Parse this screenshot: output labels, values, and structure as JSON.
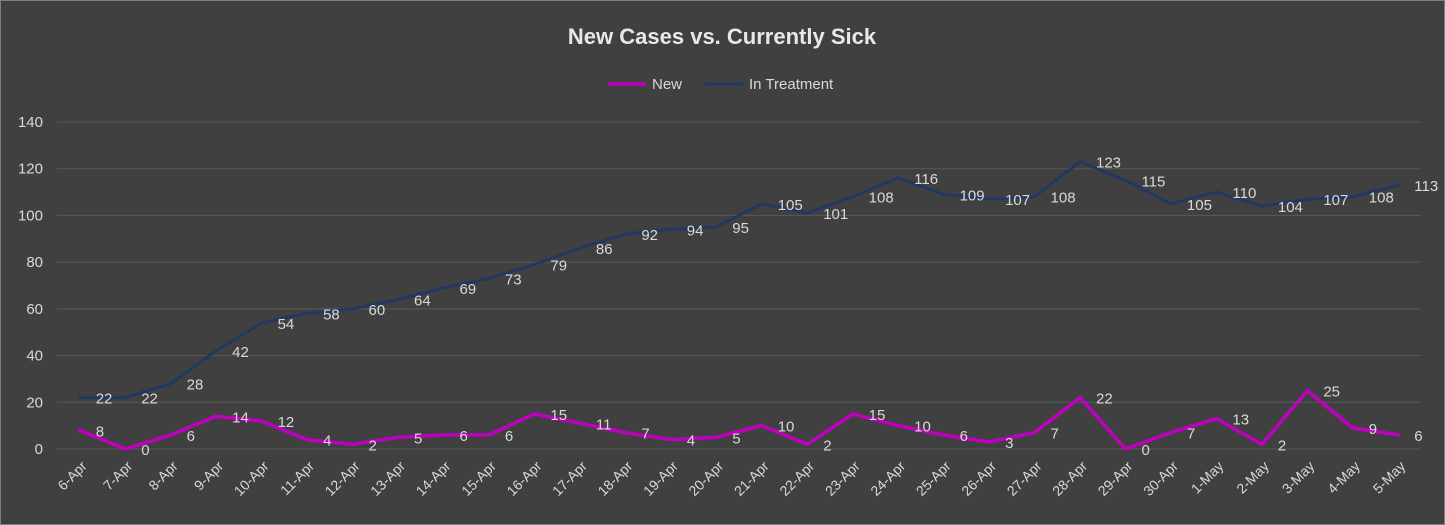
{
  "chart_data": {
    "type": "line",
    "title": "New Cases vs. Currently Sick",
    "xlabel": "",
    "ylabel": "",
    "ylim": [
      0,
      140
    ],
    "yticks": [
      0,
      20,
      40,
      60,
      80,
      100,
      120,
      140
    ],
    "grid": true,
    "legend_position": "top",
    "categories": [
      "6-Apr",
      "7-Apr",
      "8-Apr",
      "9-Apr",
      "10-Apr",
      "11-Apr",
      "12-Apr",
      "13-Apr",
      "14-Apr",
      "15-Apr",
      "16-Apr",
      "17-Apr",
      "18-Apr",
      "19-Apr",
      "20-Apr",
      "21-Apr",
      "22-Apr",
      "23-Apr",
      "24-Apr",
      "25-Apr",
      "26-Apr",
      "27-Apr",
      "28-Apr",
      "29-Apr",
      "30-Apr",
      "1-May",
      "2-May",
      "3-May",
      "4-May",
      "5-May"
    ],
    "series": [
      {
        "name": "New",
        "color": "#c000c0",
        "values": [
          8,
          0,
          6,
          14,
          12,
          4,
          2,
          5,
          6,
          6,
          15,
          11,
          7,
          4,
          5,
          10,
          2,
          15,
          10,
          6,
          3,
          7,
          22,
          0,
          7,
          13,
          2,
          25,
          9,
          6
        ]
      },
      {
        "name": "In Treatment",
        "color": "#203864",
        "values": [
          22,
          22,
          28,
          42,
          54,
          58,
          60,
          64,
          69,
          73,
          79,
          86,
          92,
          94,
          95,
          105,
          101,
          108,
          116,
          109,
          107,
          108,
          123,
          115,
          105,
          110,
          104,
          107,
          108,
          113
        ]
      }
    ]
  }
}
